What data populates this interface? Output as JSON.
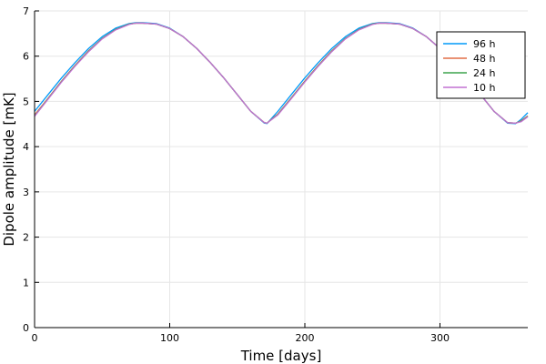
{
  "chart_data": {
    "type": "line",
    "xlabel": "Time [days]",
    "ylabel": "Dipole amplitude [mK]",
    "xlim": [
      0,
      365
    ],
    "ylim": [
      0,
      7
    ],
    "xticks": [
      0,
      100,
      200,
      300
    ],
    "yticks": [
      0,
      1,
      2,
      3,
      4,
      5,
      6,
      7
    ],
    "grid": true,
    "legend_position": "top-right",
    "series": [
      {
        "name": "96 h",
        "color": "#009af9",
        "x": [
          0,
          10,
          20,
          30,
          40,
          50,
          60,
          70,
          75,
          80,
          90,
          100,
          110,
          120,
          130,
          140,
          150,
          160,
          170,
          172,
          180,
          190,
          200,
          210,
          220,
          230,
          240,
          250,
          255,
          260,
          270,
          280,
          290,
          300,
          310,
          320,
          330,
          340,
          350,
          356,
          360,
          365
        ],
        "y": [
          4.78,
          5.15,
          5.52,
          5.86,
          6.17,
          6.43,
          6.62,
          6.72,
          6.74,
          6.74,
          6.72,
          6.62,
          6.43,
          6.17,
          5.86,
          5.52,
          5.15,
          4.78,
          4.52,
          4.51,
          4.78,
          5.15,
          5.52,
          5.86,
          6.17,
          6.43,
          6.62,
          6.72,
          6.74,
          6.74,
          6.72,
          6.62,
          6.43,
          6.17,
          5.86,
          5.52,
          5.15,
          4.78,
          4.52,
          4.51,
          4.6,
          4.75
        ]
      },
      {
        "name": "48 h",
        "color": "#e26f46",
        "x": [
          0,
          10,
          20,
          30,
          40,
          50,
          60,
          70,
          75,
          80,
          90,
          100,
          110,
          120,
          130,
          140,
          150,
          160,
          170,
          172,
          180,
          190,
          200,
          210,
          220,
          230,
          240,
          250,
          255,
          260,
          270,
          280,
          290,
          300,
          310,
          320,
          330,
          340,
          350,
          356,
          360,
          365
        ],
        "y": [
          4.7,
          5.07,
          5.45,
          5.8,
          6.12,
          6.39,
          6.59,
          6.71,
          6.73,
          6.73,
          6.71,
          6.61,
          6.43,
          6.17,
          5.86,
          5.52,
          5.15,
          4.78,
          4.53,
          4.52,
          4.72,
          5.08,
          5.45,
          5.8,
          6.12,
          6.39,
          6.59,
          6.71,
          6.73,
          6.73,
          6.71,
          6.61,
          6.43,
          6.17,
          5.86,
          5.52,
          5.15,
          4.78,
          4.53,
          4.52,
          4.57,
          4.68
        ]
      },
      {
        "name": "24 h",
        "color": "#3da44d",
        "x": [
          0,
          10,
          20,
          30,
          40,
          50,
          60,
          70,
          75,
          80,
          90,
          100,
          110,
          120,
          130,
          140,
          150,
          160,
          170,
          172,
          180,
          190,
          200,
          210,
          220,
          230,
          240,
          250,
          255,
          260,
          270,
          280,
          290,
          300,
          310,
          320,
          330,
          340,
          350,
          356,
          360,
          365
        ],
        "y": [
          4.68,
          5.06,
          5.44,
          5.79,
          6.11,
          6.39,
          6.59,
          6.71,
          6.73,
          6.73,
          6.71,
          6.61,
          6.43,
          6.17,
          5.86,
          5.52,
          5.15,
          4.78,
          4.53,
          4.52,
          4.71,
          5.07,
          5.44,
          5.79,
          6.11,
          6.39,
          6.59,
          6.71,
          6.73,
          6.73,
          6.71,
          6.61,
          6.43,
          6.17,
          5.86,
          5.52,
          5.15,
          4.78,
          4.53,
          4.52,
          4.56,
          4.67
        ]
      },
      {
        "name": "10 h",
        "color": "#c271d2",
        "x": [
          0,
          10,
          20,
          30,
          40,
          50,
          60,
          70,
          75,
          80,
          90,
          100,
          110,
          120,
          130,
          140,
          150,
          160,
          170,
          172,
          180,
          190,
          200,
          210,
          220,
          230,
          240,
          250,
          255,
          260,
          270,
          280,
          290,
          300,
          310,
          320,
          330,
          340,
          350,
          356,
          360,
          365
        ],
        "y": [
          4.67,
          5.05,
          5.43,
          5.78,
          6.1,
          6.38,
          6.58,
          6.7,
          6.73,
          6.73,
          6.71,
          6.61,
          6.43,
          6.17,
          5.86,
          5.52,
          5.15,
          4.78,
          4.53,
          4.52,
          4.7,
          5.06,
          5.43,
          5.78,
          6.1,
          6.38,
          6.58,
          6.7,
          6.73,
          6.73,
          6.71,
          6.61,
          6.43,
          6.17,
          5.86,
          5.52,
          5.15,
          4.78,
          4.53,
          4.52,
          4.55,
          4.66
        ]
      }
    ]
  }
}
